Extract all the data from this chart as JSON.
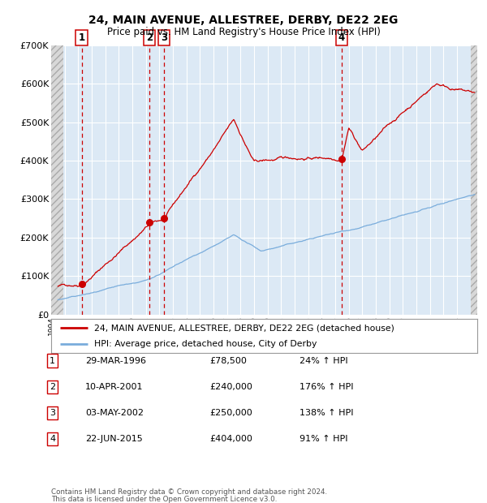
{
  "title1": "24, MAIN AVENUE, ALLESTREE, DERBY, DE22 2EG",
  "title2": "Price paid vs. HM Land Registry's House Price Index (HPI)",
  "background_color": "#dce9f5",
  "grid_color": "#ffffff",
  "red_line_color": "#cc0000",
  "blue_line_color": "#7aaddc",
  "sale_marker_color": "#cc0000",
  "dashed_line_color": "#cc0000",
  "ylim": [
    0,
    700000
  ],
  "yticks": [
    0,
    100000,
    200000,
    300000,
    400000,
    500000,
    600000,
    700000
  ],
  "ytick_labels": [
    "£0",
    "£100K",
    "£200K",
    "£300K",
    "£400K",
    "£500K",
    "£600K",
    "£700K"
  ],
  "xlim_start": 1994.0,
  "xlim_end": 2025.5,
  "sale_dates": [
    1996.25,
    2001.28,
    2002.34,
    2015.47
  ],
  "sale_prices": [
    78500,
    240000,
    250000,
    404000
  ],
  "sale_labels": [
    "1",
    "2",
    "3",
    "4"
  ],
  "legend_line1": "24, MAIN AVENUE, ALLESTREE, DERBY, DE22 2EG (detached house)",
  "legend_line2": "HPI: Average price, detached house, City of Derby",
  "table_entries": [
    {
      "num": "1",
      "date": "29-MAR-1996",
      "price": "£78,500",
      "change": "24% ↑ HPI"
    },
    {
      "num": "2",
      "date": "10-APR-2001",
      "price": "£240,000",
      "change": "176% ↑ HPI"
    },
    {
      "num": "3",
      "date": "03-MAY-2002",
      "price": "£250,000",
      "change": "138% ↑ HPI"
    },
    {
      "num": "4",
      "date": "22-JUN-2015",
      "price": "£404,000",
      "change": "91% ↑ HPI"
    }
  ],
  "footer1": "Contains HM Land Registry data © Crown copyright and database right 2024.",
  "footer2": "This data is licensed under the Open Government Licence v3.0."
}
